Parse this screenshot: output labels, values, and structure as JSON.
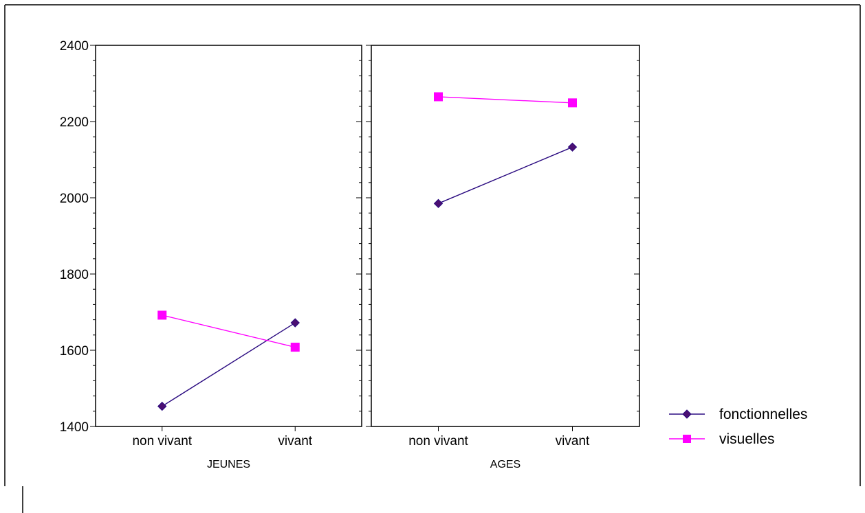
{
  "chart_data": {
    "type": "line",
    "ylim": [
      1400,
      2400
    ],
    "yticks": [
      1400,
      1600,
      1800,
      2000,
      2200,
      2400
    ],
    "categories": [
      "non vivant",
      "vivant"
    ],
    "panels": [
      {
        "label": "JEUNES",
        "series": [
          {
            "name": "fonctionnelles",
            "values": [
              1453,
              1672
            ]
          },
          {
            "name": "visuelles",
            "values": [
              1692,
              1608
            ]
          }
        ]
      },
      {
        "label": "AGES",
        "series": [
          {
            "name": "fonctionnelles",
            "values": [
              1985,
              2133
            ]
          },
          {
            "name": "visuelles",
            "values": [
              2265,
              2249
            ]
          }
        ]
      }
    ],
    "legend": {
      "position": "bottom-right",
      "items": [
        {
          "name": "fonctionnelles",
          "color": "#2a0a80",
          "marker": "diamond",
          "marker_color": "#4b0f72"
        },
        {
          "name": "visuelles",
          "color": "#ff00ff",
          "marker": "square",
          "marker_color": "#ff00ff"
        }
      ]
    },
    "grid": false
  }
}
